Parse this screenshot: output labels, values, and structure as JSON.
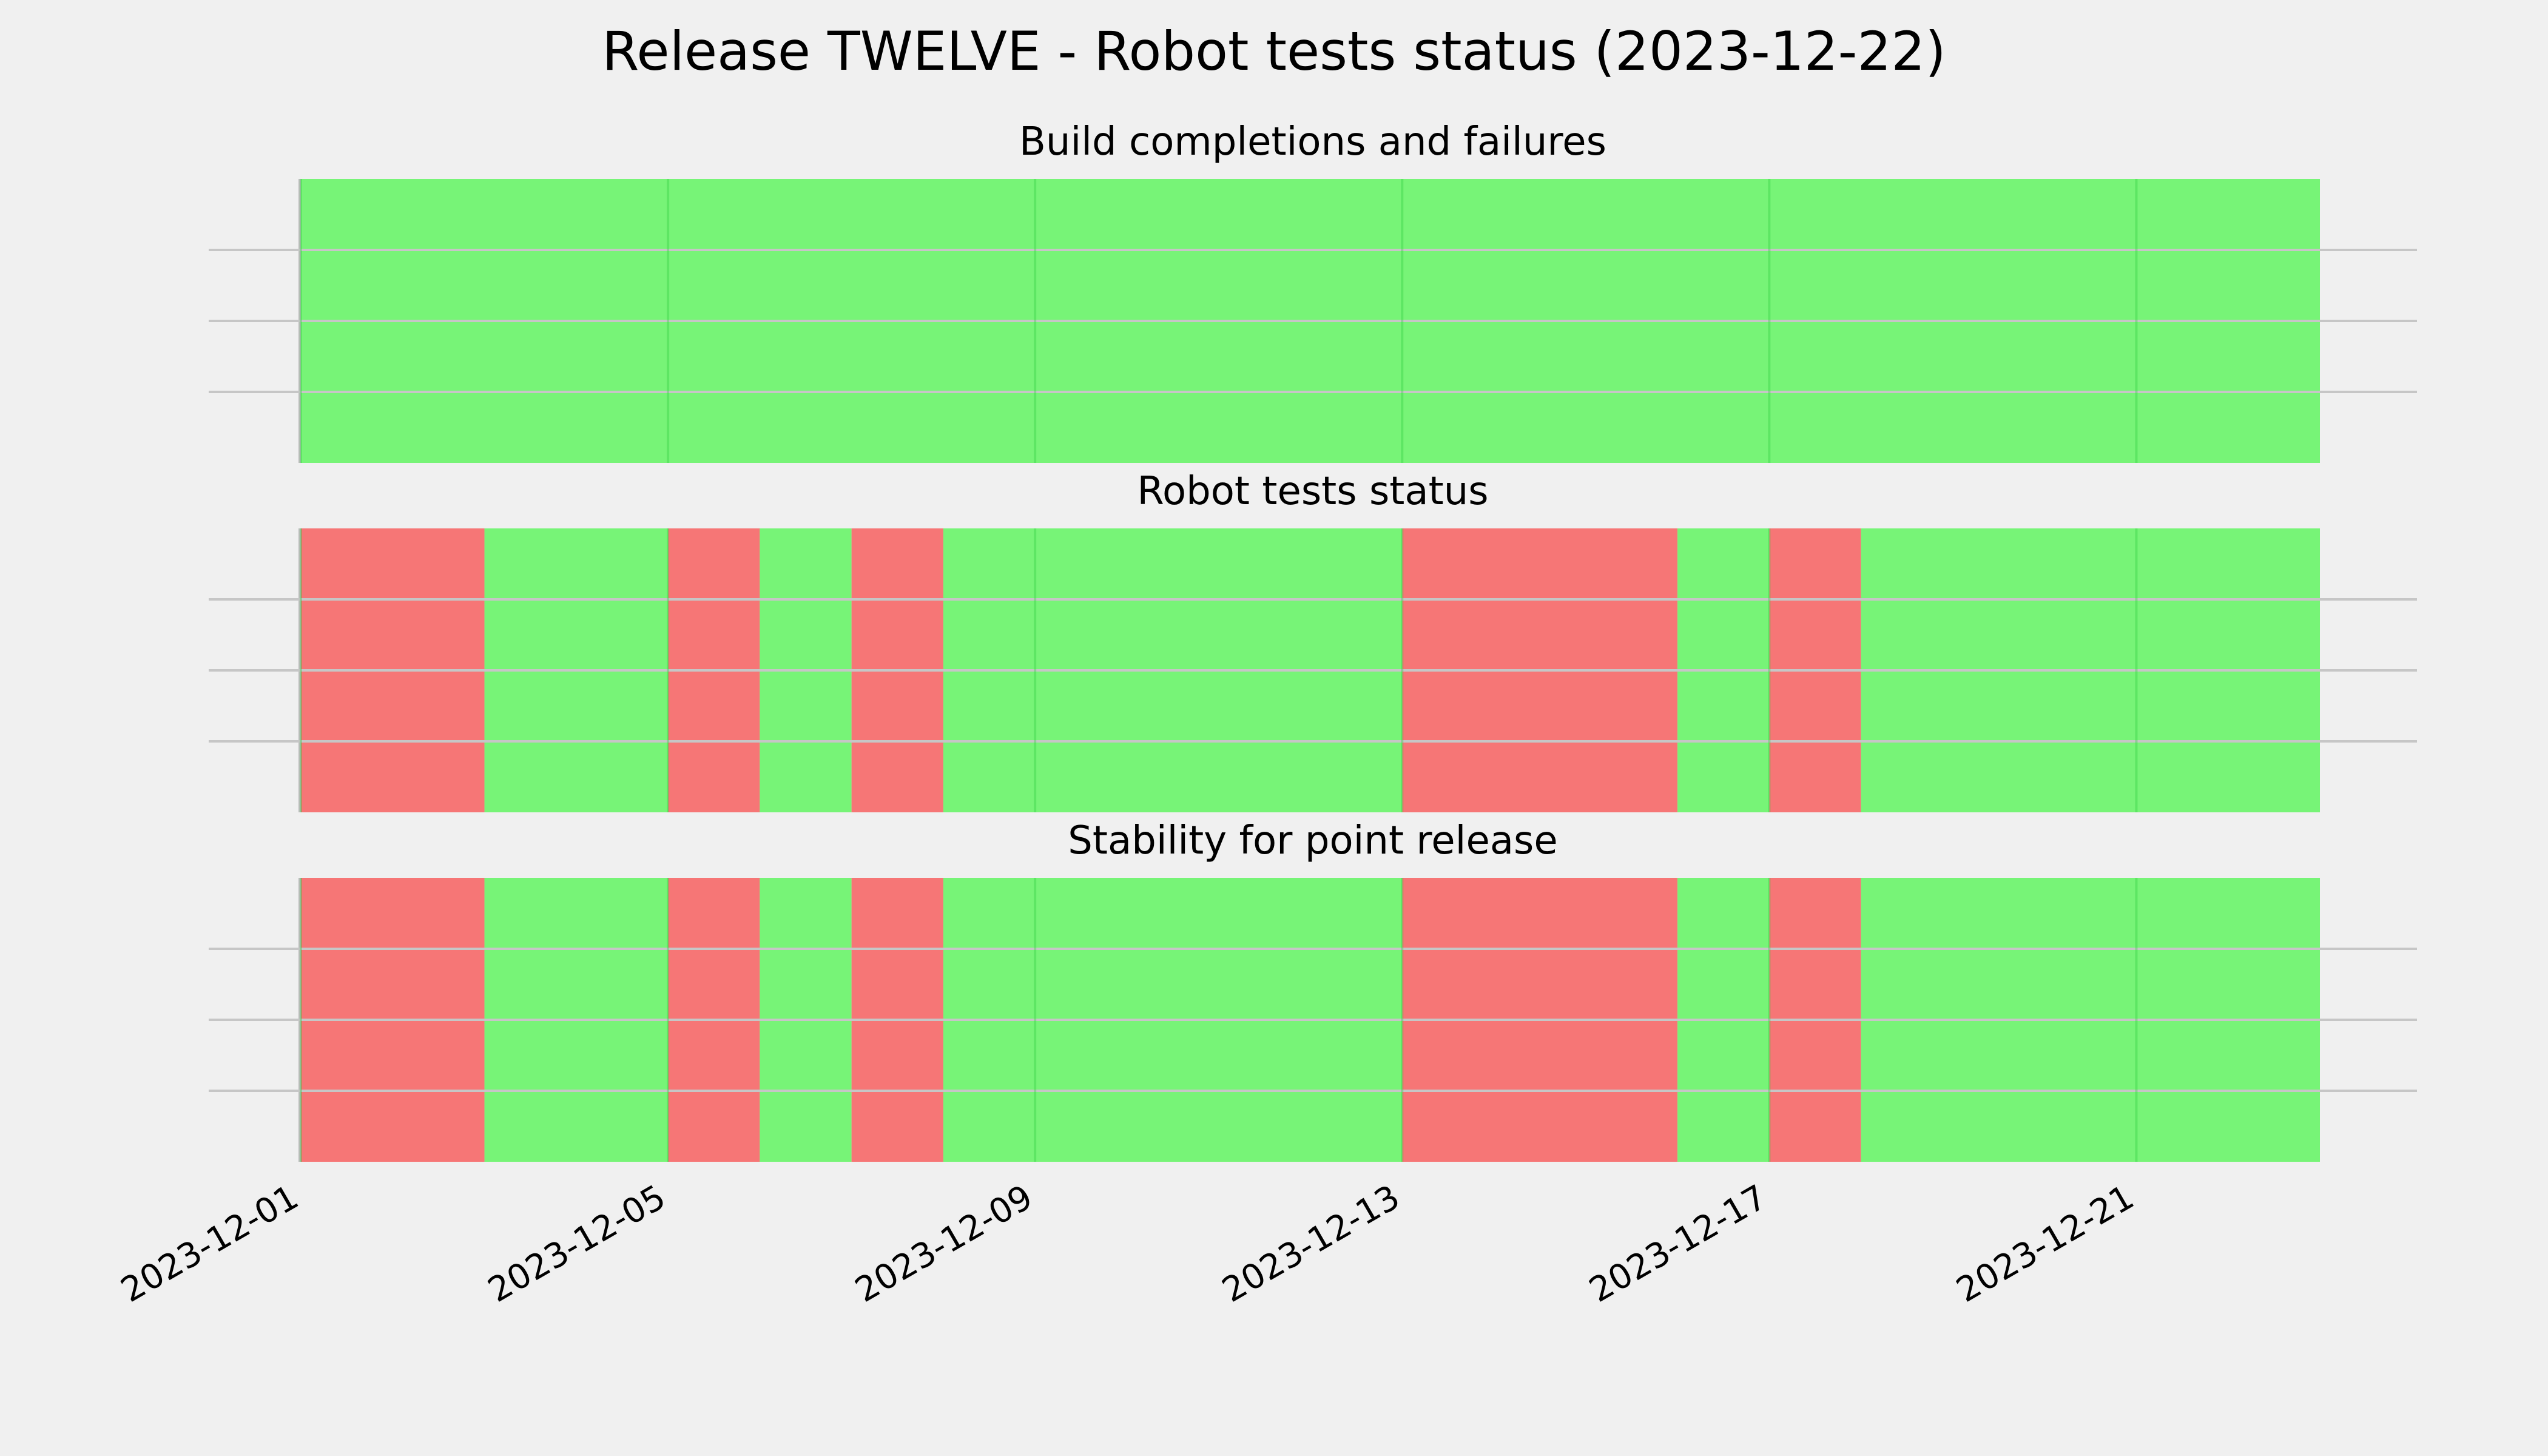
{
  "chart_data": {
    "type": "timeline",
    "title": "Release TWELVE - Robot tests status (2023-12-22)",
    "x_range": [
      "2023-12-01",
      "2023-12-23"
    ],
    "x_ticks": [
      "2023-12-01",
      "2023-12-05",
      "2023-12-09",
      "2023-12-13",
      "2023-12-17",
      "2023-12-21"
    ],
    "grid": true,
    "colors": {
      "pass": "#77f477",
      "fail": "#f67676",
      "background": "#f0f0f0"
    },
    "panels": [
      {
        "title": "Build completions and failures",
        "segments": [
          {
            "start": "2023-12-01",
            "end": "2023-12-23",
            "status": "pass"
          }
        ]
      },
      {
        "title": "Robot tests status",
        "segments": [
          {
            "start": "2023-12-01",
            "end": "2023-12-03",
            "status": "fail"
          },
          {
            "start": "2023-12-03",
            "end": "2023-12-05",
            "status": "pass"
          },
          {
            "start": "2023-12-05",
            "end": "2023-12-06",
            "status": "fail"
          },
          {
            "start": "2023-12-06",
            "end": "2023-12-07",
            "status": "pass"
          },
          {
            "start": "2023-12-07",
            "end": "2023-12-08",
            "status": "fail"
          },
          {
            "start": "2023-12-08",
            "end": "2023-12-13",
            "status": "pass"
          },
          {
            "start": "2023-12-13",
            "end": "2023-12-16",
            "status": "fail"
          },
          {
            "start": "2023-12-16",
            "end": "2023-12-17",
            "status": "pass"
          },
          {
            "start": "2023-12-17",
            "end": "2023-12-18",
            "status": "fail"
          },
          {
            "start": "2023-12-18",
            "end": "2023-12-23",
            "status": "pass"
          }
        ]
      },
      {
        "title": "Stability for point release",
        "segments": [
          {
            "start": "2023-12-01",
            "end": "2023-12-03",
            "status": "fail"
          },
          {
            "start": "2023-12-03",
            "end": "2023-12-05",
            "status": "pass"
          },
          {
            "start": "2023-12-05",
            "end": "2023-12-06",
            "status": "fail"
          },
          {
            "start": "2023-12-06",
            "end": "2023-12-07",
            "status": "pass"
          },
          {
            "start": "2023-12-07",
            "end": "2023-12-08",
            "status": "fail"
          },
          {
            "start": "2023-12-08",
            "end": "2023-12-13",
            "status": "pass"
          },
          {
            "start": "2023-12-13",
            "end": "2023-12-16",
            "status": "fail"
          },
          {
            "start": "2023-12-16",
            "end": "2023-12-17",
            "status": "pass"
          },
          {
            "start": "2023-12-17",
            "end": "2023-12-18",
            "status": "fail"
          },
          {
            "start": "2023-12-18",
            "end": "2023-12-23",
            "status": "pass"
          }
        ]
      }
    ]
  }
}
